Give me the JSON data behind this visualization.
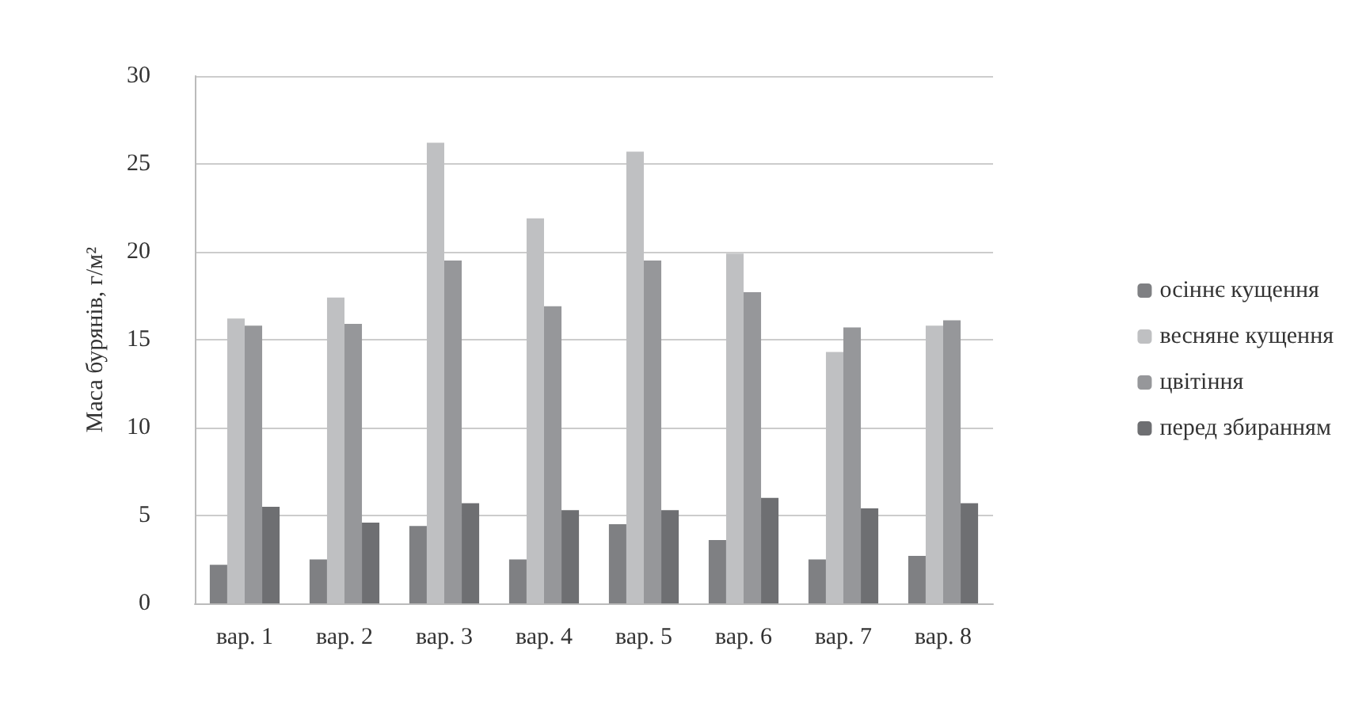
{
  "chart_data": {
    "type": "bar",
    "ylabel": "Маса бурянів, г/м²",
    "categories": [
      "вар. 1",
      "вар. 2",
      "вар. 3",
      "вар. 4",
      "вар. 5",
      "вар. 6",
      "вар. 7",
      "вар. 8"
    ],
    "series": [
      {
        "name": "осіннє кущення",
        "color": "#7f8083",
        "values": [
          2.2,
          2.5,
          4.4,
          2.5,
          4.5,
          3.6,
          2.5,
          2.7
        ]
      },
      {
        "name": "весняне кущення",
        "color": "#bfc0c2",
        "values": [
          16.2,
          17.4,
          26.2,
          21.9,
          25.7,
          19.9,
          14.3,
          15.8
        ]
      },
      {
        "name": "цвітіння",
        "color": "#96979a",
        "values": [
          15.8,
          15.9,
          19.5,
          16.9,
          19.5,
          17.7,
          15.7,
          16.1
        ]
      },
      {
        "name": "перед збиранням",
        "color": "#6e6f72",
        "values": [
          5.5,
          4.6,
          5.7,
          5.3,
          5.3,
          6.0,
          5.4,
          5.7
        ]
      }
    ],
    "ylim": [
      0,
      30
    ],
    "yticks": [
      0,
      5,
      10,
      15,
      20,
      25,
      30
    ],
    "grid": "y",
    "legend": "right"
  }
}
